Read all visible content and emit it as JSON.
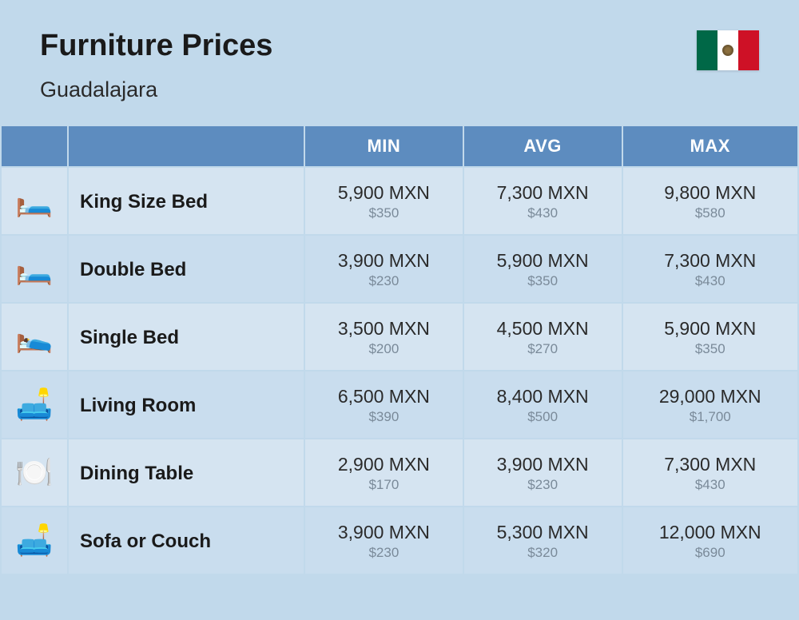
{
  "header": {
    "title": "Furniture Prices",
    "subtitle": "Guadalajara"
  },
  "columns": {
    "min": "MIN",
    "avg": "AVG",
    "max": "MAX"
  },
  "rows": [
    {
      "icon": "🛏️",
      "name": "King Size Bed",
      "min_mxn": "5,900 MXN",
      "min_usd": "$350",
      "avg_mxn": "7,300 MXN",
      "avg_usd": "$430",
      "max_mxn": "9,800 MXN",
      "max_usd": "$580"
    },
    {
      "icon": "🛏️",
      "name": "Double Bed",
      "min_mxn": "3,900 MXN",
      "min_usd": "$230",
      "avg_mxn": "5,900 MXN",
      "avg_usd": "$350",
      "max_mxn": "7,300 MXN",
      "max_usd": "$430"
    },
    {
      "icon": "🛌",
      "name": "Single Bed",
      "min_mxn": "3,500 MXN",
      "min_usd": "$200",
      "avg_mxn": "4,500 MXN",
      "avg_usd": "$270",
      "max_mxn": "5,900 MXN",
      "max_usd": "$350"
    },
    {
      "icon": "🛋️",
      "name": "Living Room",
      "min_mxn": "6,500 MXN",
      "min_usd": "$390",
      "avg_mxn": "8,400 MXN",
      "avg_usd": "$500",
      "max_mxn": "29,000 MXN",
      "max_usd": "$1,700"
    },
    {
      "icon": "🍽️",
      "name": "Dining Table",
      "min_mxn": "2,900 MXN",
      "min_usd": "$170",
      "avg_mxn": "3,900 MXN",
      "avg_usd": "$230",
      "max_mxn": "7,300 MXN",
      "max_usd": "$430"
    },
    {
      "icon": "🛋️",
      "name": "Sofa or Couch",
      "min_mxn": "3,900 MXN",
      "min_usd": "$230",
      "avg_mxn": "5,300 MXN",
      "avg_usd": "$320",
      "max_mxn": "12,000 MXN",
      "max_usd": "$690"
    }
  ],
  "styling": {
    "page_background": "#c1d9eb",
    "header_row_background": "#5d8cbf",
    "header_row_text": "#ffffff",
    "row_odd_background": "#d5e4f1",
    "row_even_background": "#c9ddee",
    "main_text_color": "#2a2a2a",
    "usd_text_color": "#7a8a99",
    "title_fontsize": 38,
    "subtitle_fontsize": 27,
    "header_fontsize": 22,
    "name_fontsize": 24,
    "mxn_fontsize": 23,
    "usd_fontsize": 17,
    "flag_colors": {
      "green": "#006847",
      "white": "#ffffff",
      "red": "#ce1126"
    }
  }
}
